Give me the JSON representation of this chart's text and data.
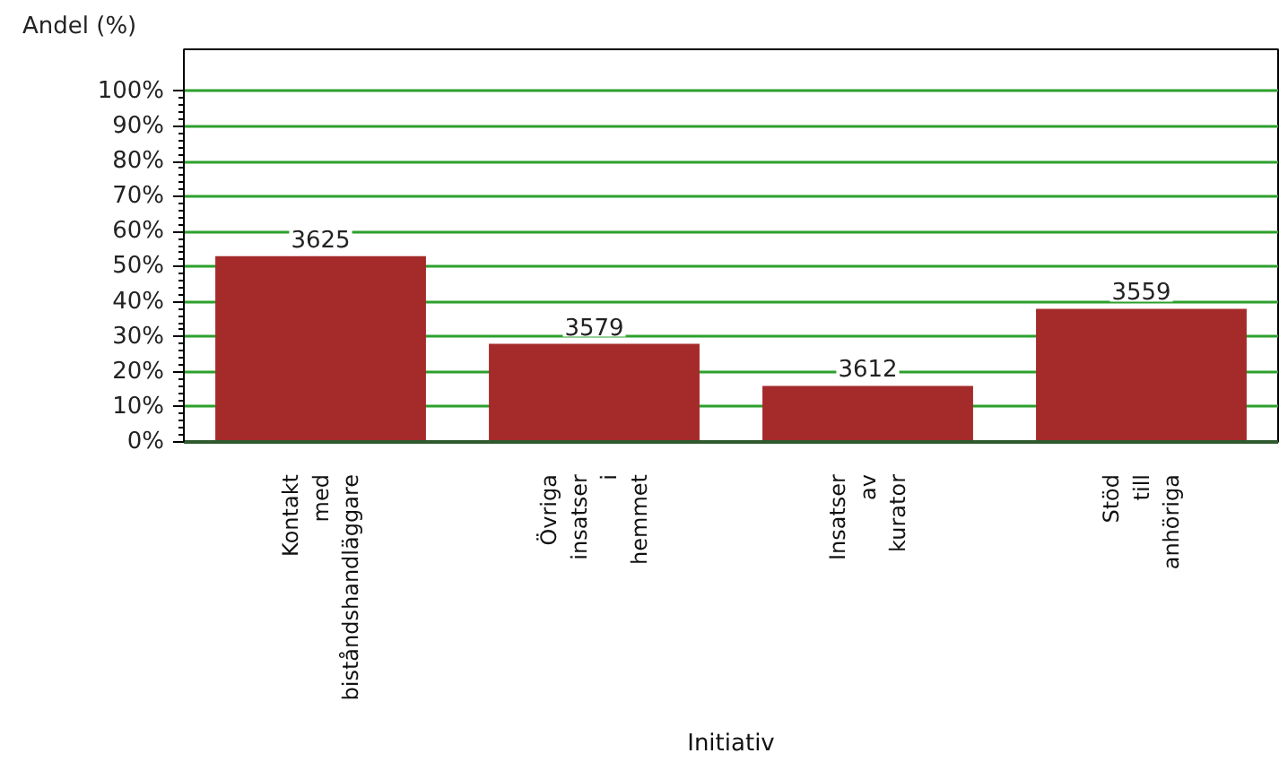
{
  "chart_data": {
    "type": "bar",
    "xlabel": "Initiativ",
    "ylabel": "Andel (%)",
    "categories": [
      "Kontakt med biståndshandläggare",
      "Övriga insatser i hemmet",
      "Insatser av kurator",
      "Stöd till anhöriga"
    ],
    "values": [
      53,
      28,
      16,
      38
    ],
    "color": "#a52a2a",
    "ylim": [
      0,
      112
    ],
    "yticks": [
      {
        "value": 0,
        "label": "0%"
      },
      {
        "value": 10,
        "label": "10%"
      },
      {
        "value": 20,
        "label": "20%"
      },
      {
        "value": 30,
        "label": "30%"
      },
      {
        "value": 40,
        "label": "40%"
      },
      {
        "value": 50,
        "label": "50%"
      },
      {
        "value": 60,
        "label": "60%"
      },
      {
        "value": 70,
        "label": "70%"
      },
      {
        "value": 80,
        "label": "80%"
      },
      {
        "value": 90,
        "label": "90%"
      },
      {
        "value": 100,
        "label": "100%"
      }
    ],
    "grid": "y",
    "annotations": [
      {
        "text": "3625",
        "x": "Kontakt med biståndshandläggare",
        "y": 53
      },
      {
        "text": "3579",
        "x": "Övriga insatser i hemmet",
        "y": 28
      },
      {
        "text": "3612",
        "x": "Insatser av kurator",
        "y": 16
      },
      {
        "text": "3559",
        "x": "Stöd till anhöriga",
        "y": 38
      }
    ]
  }
}
